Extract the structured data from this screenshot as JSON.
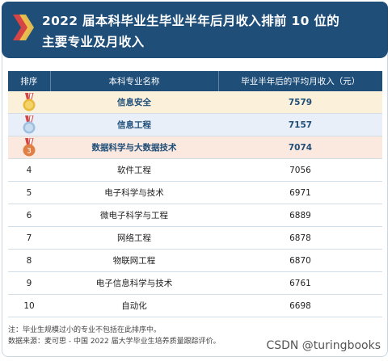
{
  "title": {
    "line1": "2022 届本科毕业生毕业半年后月收入排前 10 位的",
    "line2": "主要专业及月收入"
  },
  "table": {
    "headers": [
      "排序",
      "本科专业名称",
      "毕业半年后的平均月收入（元）"
    ],
    "rows": [
      {
        "rank": "1",
        "major": "信息安全",
        "income": "7579",
        "medal": "gold-medal-icon"
      },
      {
        "rank": "2",
        "major": "信息工程",
        "income": "7157",
        "medal": "silver-medal-icon"
      },
      {
        "rank": "3",
        "major": "数据科学与大数据技术",
        "income": "7074",
        "medal": "bronze-medal-icon"
      },
      {
        "rank": "4",
        "major": "软件工程",
        "income": "7056"
      },
      {
        "rank": "5",
        "major": "电子科学与技术",
        "income": "6971"
      },
      {
        "rank": "6",
        "major": "微电子科学与工程",
        "income": "6889"
      },
      {
        "rank": "7",
        "major": "网络工程",
        "income": "6878"
      },
      {
        "rank": "8",
        "major": "物联网工程",
        "income": "6870"
      },
      {
        "rank": "9",
        "major": "电子信息科学与技术",
        "income": "6761"
      },
      {
        "rank": "10",
        "major": "自动化",
        "income": "6698"
      }
    ]
  },
  "notes": {
    "line1": "注：毕业生规模过小的专业不包括在此排序中。",
    "line2": "数据来源：麦可思 - 中国 2022 届大学毕业生培养质量跟踪评价。"
  },
  "watermark": "CSDN @turingbooks",
  "colors": {
    "header": "#1f4e79",
    "gold": "#e9b93a",
    "silver": "#9fbfe0",
    "bronze": "#e07f45"
  }
}
